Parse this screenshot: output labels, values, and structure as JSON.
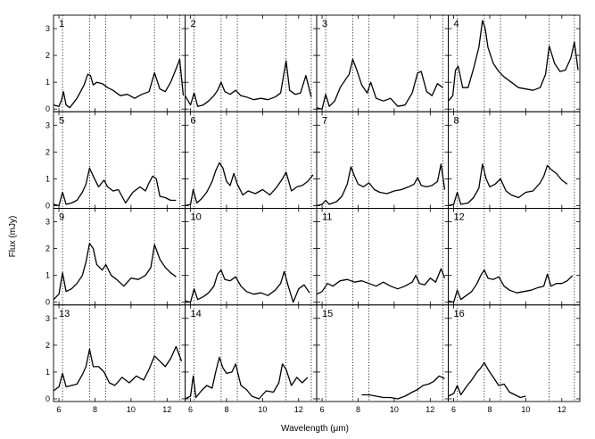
{
  "chart_data": {
    "type": "line",
    "layout": "4x4 grid of panels, shared axes",
    "xlabel": "Wavelength (μm)",
    "ylabel": "Flux (mJy)",
    "xlim": [
      5.7,
      13.0
    ],
    "ylim": [
      -0.1,
      3.5
    ],
    "x_ticks": [
      6,
      8,
      10,
      12
    ],
    "y_ticks": [
      0,
      1,
      2,
      3
    ],
    "reference_lines_um": [
      6.2,
      7.7,
      8.6,
      11.3,
      12.7
    ],
    "panels": [
      {
        "label": "1",
        "x": [
          5.7,
          6.0,
          6.15,
          6.25,
          6.4,
          6.6,
          7.0,
          7.4,
          7.6,
          7.75,
          7.9,
          8.1,
          8.4,
          8.7,
          9.0,
          9.4,
          9.8,
          10.2,
          10.6,
          11.0,
          11.3,
          11.6,
          11.9,
          12.2,
          12.5,
          12.7,
          12.9
        ],
        "y": [
          0.15,
          0.1,
          0.35,
          0.65,
          0.15,
          0.05,
          0.4,
          0.9,
          1.3,
          1.25,
          0.9,
          1.0,
          0.95,
          0.8,
          0.7,
          0.5,
          0.55,
          0.4,
          0.55,
          0.65,
          1.35,
          0.75,
          0.65,
          1.0,
          1.5,
          1.85,
          0.5
        ]
      },
      {
        "label": "2",
        "x": [
          5.7,
          6.0,
          6.2,
          6.4,
          6.7,
          7.0,
          7.3,
          7.5,
          7.7,
          7.9,
          8.2,
          8.5,
          8.8,
          9.1,
          9.5,
          9.9,
          10.3,
          10.7,
          11.0,
          11.3,
          11.5,
          11.8,
          12.1,
          12.4,
          12.7
        ],
        "y": [
          0.5,
          0.15,
          0.6,
          0.1,
          0.15,
          0.3,
          0.5,
          0.7,
          1.0,
          0.65,
          0.55,
          0.7,
          0.5,
          0.45,
          0.35,
          0.4,
          0.35,
          0.45,
          0.6,
          1.8,
          0.7,
          0.55,
          0.6,
          1.25,
          0.45
        ]
      },
      {
        "label": "3",
        "x": [
          5.7,
          6.0,
          6.2,
          6.4,
          6.7,
          7.0,
          7.3,
          7.5,
          7.7,
          7.9,
          8.2,
          8.5,
          8.7,
          9.0,
          9.4,
          9.8,
          10.2,
          10.6,
          11.0,
          11.3,
          11.5,
          11.8,
          12.1,
          12.4,
          12.7
        ],
        "y": [
          0.05,
          0.0,
          0.55,
          0.1,
          0.3,
          0.8,
          1.1,
          1.3,
          1.85,
          1.5,
          0.9,
          0.6,
          1.0,
          0.4,
          0.3,
          0.4,
          0.1,
          0.15,
          0.6,
          1.35,
          1.4,
          0.65,
          0.5,
          0.95,
          0.8
        ]
      },
      {
        "label": "4",
        "x": [
          5.7,
          5.95,
          6.1,
          6.25,
          6.5,
          6.8,
          7.1,
          7.4,
          7.6,
          7.75,
          7.9,
          8.2,
          8.5,
          8.8,
          9.2,
          9.6,
          10.0,
          10.4,
          10.8,
          11.1,
          11.3,
          11.6,
          11.9,
          12.2,
          12.5,
          12.7,
          12.9
        ],
        "y": [
          0.3,
          0.5,
          1.45,
          1.6,
          0.8,
          0.8,
          1.5,
          2.3,
          3.3,
          3.0,
          2.3,
          1.7,
          1.4,
          1.2,
          1.0,
          0.8,
          0.75,
          0.7,
          0.8,
          1.3,
          2.35,
          1.7,
          1.4,
          1.45,
          1.9,
          2.5,
          1.45
        ]
      },
      {
        "label": "5",
        "x": [
          5.7,
          6.0,
          6.2,
          6.4,
          6.7,
          7.0,
          7.3,
          7.5,
          7.7,
          7.9,
          8.2,
          8.5,
          8.7,
          9.0,
          9.3,
          9.7,
          10.1,
          10.5,
          10.8,
          11.0,
          11.2,
          11.4,
          11.6,
          11.9,
          12.2,
          12.5
        ],
        "y": [
          0.05,
          0.0,
          0.5,
          0.05,
          0.1,
          0.2,
          0.5,
          0.8,
          1.4,
          1.1,
          0.7,
          0.95,
          0.7,
          0.55,
          0.6,
          0.1,
          0.5,
          0.7,
          0.55,
          0.85,
          1.1,
          1.0,
          0.35,
          0.3,
          0.2,
          0.2
        ]
      },
      {
        "label": "6",
        "x": [
          5.7,
          6.0,
          6.15,
          6.35,
          6.6,
          6.9,
          7.2,
          7.4,
          7.6,
          7.8,
          8.0,
          8.2,
          8.4,
          8.6,
          8.9,
          9.2,
          9.6,
          10.0,
          10.4,
          10.8,
          11.1,
          11.3,
          11.6,
          11.9,
          12.2,
          12.5,
          12.8
        ],
        "y": [
          0.0,
          0.05,
          0.6,
          0.1,
          0.25,
          0.5,
          0.9,
          1.3,
          1.6,
          1.4,
          0.9,
          0.75,
          1.2,
          0.8,
          0.4,
          0.55,
          0.45,
          0.6,
          0.4,
          0.7,
          1.0,
          1.25,
          0.55,
          0.7,
          0.75,
          0.9,
          1.15
        ]
      },
      {
        "label": "7",
        "x": [
          5.7,
          6.0,
          6.2,
          6.4,
          6.8,
          7.1,
          7.4,
          7.6,
          7.8,
          8.0,
          8.3,
          8.6,
          8.9,
          9.2,
          9.6,
          10.0,
          10.4,
          10.8,
          11.1,
          11.3,
          11.5,
          11.8,
          12.1,
          12.4,
          12.6,
          12.8
        ],
        "y": [
          0.0,
          0.05,
          0.2,
          0.05,
          0.15,
          0.35,
          0.8,
          1.45,
          1.1,
          0.8,
          0.7,
          0.85,
          0.6,
          0.5,
          0.45,
          0.55,
          0.6,
          0.7,
          0.8,
          1.05,
          0.75,
          0.7,
          0.75,
          0.9,
          1.55,
          0.6
        ]
      },
      {
        "label": "8",
        "x": [
          5.7,
          6.0,
          6.2,
          6.4,
          6.8,
          7.1,
          7.4,
          7.6,
          7.8,
          8.0,
          8.3,
          8.6,
          8.9,
          9.2,
          9.6,
          10.0,
          10.4,
          10.8,
          11.0,
          11.2,
          11.4,
          11.7,
          12.0,
          12.3
        ],
        "y": [
          0.0,
          0.05,
          0.5,
          0.05,
          0.1,
          0.3,
          0.65,
          1.55,
          1.0,
          0.7,
          0.8,
          1.0,
          0.55,
          0.4,
          0.3,
          0.5,
          0.55,
          0.85,
          1.1,
          1.5,
          1.35,
          1.2,
          0.95,
          0.8
        ]
      },
      {
        "label": "9",
        "x": [
          5.7,
          6.0,
          6.2,
          6.4,
          6.7,
          7.0,
          7.3,
          7.5,
          7.7,
          7.9,
          8.1,
          8.4,
          8.6,
          8.9,
          9.2,
          9.6,
          10.0,
          10.4,
          10.8,
          11.1,
          11.3,
          11.6,
          11.9,
          12.2,
          12.5
        ],
        "y": [
          0.1,
          0.3,
          1.1,
          0.4,
          0.5,
          0.7,
          1.0,
          1.5,
          2.2,
          2.0,
          1.4,
          1.2,
          1.4,
          1.0,
          0.85,
          0.6,
          0.9,
          0.85,
          1.0,
          1.3,
          2.15,
          1.6,
          1.3,
          1.1,
          0.95
        ]
      },
      {
        "label": "10",
        "x": [
          5.7,
          6.0,
          6.2,
          6.4,
          6.7,
          7.0,
          7.3,
          7.5,
          7.7,
          7.9,
          8.2,
          8.5,
          8.8,
          9.1,
          9.5,
          9.9,
          10.3,
          10.7,
          11.0,
          11.2,
          11.4,
          11.7,
          12.0,
          12.3,
          12.6
        ],
        "y": [
          0.05,
          0.0,
          0.5,
          0.1,
          0.2,
          0.35,
          0.6,
          1.05,
          1.2,
          0.85,
          0.8,
          0.95,
          0.6,
          0.4,
          0.3,
          0.35,
          0.25,
          0.45,
          0.7,
          1.15,
          0.65,
          0.0,
          0.5,
          0.65,
          0.35
        ]
      },
      {
        "label": "11",
        "x": [
          5.7,
          6.0,
          6.3,
          6.6,
          7.0,
          7.4,
          7.8,
          8.2,
          8.6,
          9.0,
          9.4,
          9.8,
          10.2,
          10.6,
          11.0,
          11.2,
          11.4,
          11.7,
          12.0,
          12.3,
          12.6,
          12.8
        ],
        "y": [
          0.3,
          0.4,
          0.7,
          0.6,
          0.8,
          0.85,
          0.75,
          0.8,
          0.7,
          0.6,
          0.75,
          0.6,
          0.5,
          0.6,
          0.75,
          1.0,
          0.7,
          0.65,
          0.9,
          0.75,
          1.25,
          0.9
        ]
      },
      {
        "label": "12",
        "x": [
          5.7,
          6.0,
          6.2,
          6.4,
          6.7,
          7.0,
          7.3,
          7.5,
          7.7,
          7.9,
          8.2,
          8.5,
          8.8,
          9.1,
          9.5,
          9.9,
          10.3,
          10.7,
          11.0,
          11.2,
          11.4,
          11.7,
          12.0,
          12.3,
          12.6
        ],
        "y": [
          0.05,
          0.0,
          0.45,
          0.1,
          0.25,
          0.4,
          0.7,
          1.0,
          1.2,
          0.9,
          0.85,
          0.95,
          0.6,
          0.45,
          0.35,
          0.4,
          0.45,
          0.55,
          0.6,
          1.05,
          0.6,
          0.7,
          0.7,
          0.8,
          1.0
        ]
      },
      {
        "label": "13",
        "x": [
          5.7,
          6.0,
          6.2,
          6.4,
          6.7,
          7.0,
          7.3,
          7.5,
          7.7,
          7.9,
          8.2,
          8.5,
          8.8,
          9.1,
          9.5,
          9.9,
          10.3,
          10.7,
          11.0,
          11.3,
          11.6,
          11.9,
          12.2,
          12.5,
          12.8
        ],
        "y": [
          0.3,
          0.45,
          0.95,
          0.45,
          0.5,
          0.55,
          0.9,
          1.2,
          1.85,
          1.2,
          1.2,
          1.0,
          0.6,
          0.5,
          0.8,
          0.6,
          0.85,
          0.7,
          1.1,
          1.6,
          1.4,
          1.2,
          1.5,
          1.95,
          1.4
        ]
      },
      {
        "label": "14",
        "x": [
          5.7,
          6.0,
          6.15,
          6.3,
          6.6,
          6.9,
          7.2,
          7.4,
          7.6,
          7.8,
          8.0,
          8.3,
          8.5,
          8.8,
          9.1,
          9.4,
          9.8,
          10.2,
          10.6,
          10.9,
          11.1,
          11.3,
          11.6,
          11.9,
          12.2,
          12.5
        ],
        "y": [
          0.0,
          0.1,
          0.85,
          0.05,
          0.3,
          0.5,
          0.4,
          1.0,
          1.55,
          1.15,
          0.95,
          1.0,
          1.3,
          0.5,
          0.35,
          0.1,
          0.0,
          0.3,
          0.25,
          0.6,
          1.3,
          1.1,
          0.5,
          0.8,
          0.6,
          0.8
        ]
      },
      {
        "label": "15",
        "x": [
          8.2,
          8.6,
          9.0,
          9.4,
          9.8,
          10.2,
          10.6,
          11.0,
          11.3,
          11.6,
          11.9,
          12.2,
          12.5,
          12.8
        ],
        "y": [
          0.15,
          0.15,
          0.1,
          0.05,
          0.05,
          0.0,
          0.1,
          0.25,
          0.35,
          0.5,
          0.55,
          0.65,
          0.85,
          0.75
        ]
      },
      {
        "label": "16",
        "x": [
          5.7,
          6.0,
          6.2,
          6.4,
          6.7,
          7.0,
          7.3,
          7.5,
          7.7,
          7.9,
          8.2,
          8.5,
          8.8,
          9.1,
          9.4,
          9.7,
          10.0
        ],
        "y": [
          0.1,
          0.2,
          0.5,
          0.15,
          0.45,
          0.7,
          1.0,
          1.15,
          1.35,
          1.1,
          0.8,
          0.5,
          0.55,
          0.25,
          0.15,
          0.05,
          0.1
        ]
      }
    ]
  }
}
